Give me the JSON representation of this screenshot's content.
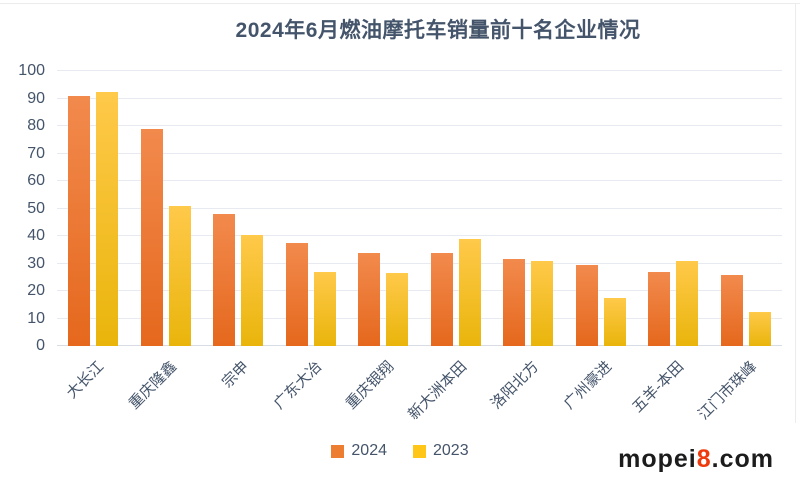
{
  "colors": {
    "background": "#FFFFFF",
    "divider": "#ECECEC",
    "title_text": "#44546A",
    "axis_text": "#44546A",
    "gridline": "#E7EAF1",
    "axis_line": "#D8DCE5",
    "watermark_text": "#1C1C1C",
    "watermark_accent": "#EE3A0C"
  },
  "watermark": {
    "prefix": "mopei",
    "number": "8",
    "suffix": ".com"
  },
  "chart_data": {
    "type": "bar",
    "title": "2024年6月燃油摩托车销量前十名企业情况",
    "xlabel": "",
    "ylabel": "",
    "categories": [
      "大长江",
      "重庆隆鑫",
      "宗申",
      "广东大冶",
      "重庆银翔",
      "新大洲本田",
      "洛阳北方",
      "广州豪进",
      "五羊-本田",
      "江门市珠峰"
    ],
    "series": [
      {
        "name": "2024",
        "legend_color": "#ED7D31",
        "color_top": "#F28A4D",
        "color_bottom": "#E5681D",
        "values": [
          91,
          79,
          48,
          37.5,
          34,
          34,
          31.5,
          29.5,
          27,
          26
        ]
      },
      {
        "name": "2023",
        "legend_color": "#FFC517",
        "color_top": "#FFC94A",
        "color_bottom": "#E9B50B",
        "values": [
          92.5,
          51,
          40.5,
          27,
          26.5,
          39,
          31,
          17.5,
          31,
          12.5
        ]
      }
    ],
    "ylim": [
      0,
      100
    ],
    "ytick_step": 10,
    "grid": true,
    "legend_position": "bottom",
    "xtick_rotation_deg": 45
  }
}
